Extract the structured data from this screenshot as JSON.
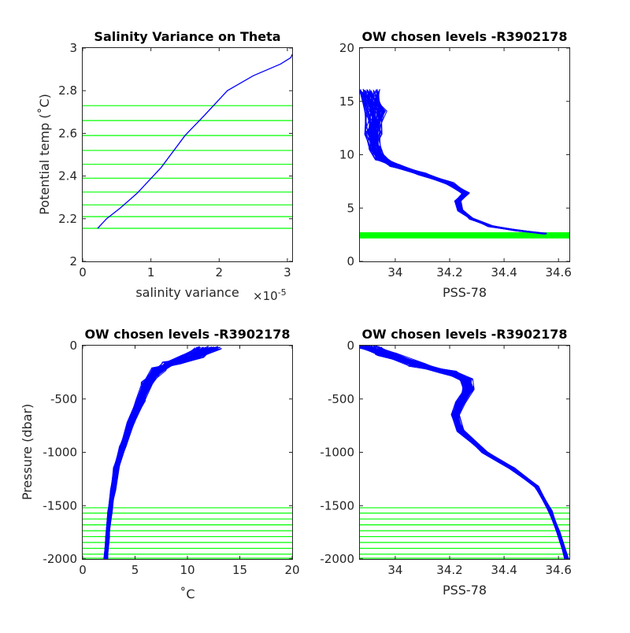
{
  "figure": {
    "panels": [
      "salinity-variance",
      "theta-salinity",
      "pressure-temperature",
      "pressure-salinity"
    ]
  },
  "chart_data": [
    {
      "id": "salinity-variance",
      "type": "line",
      "title": "Salinity Variance on Theta",
      "xlabel": "salinity variance",
      "xexponent_label": "×10",
      "xexponent_power": "-5",
      "ylabel": "Potential temp (˚C)",
      "xlim": [
        0,
        3.07
      ],
      "ylim": [
        2,
        3
      ],
      "xticks": [
        0,
        1,
        2,
        3
      ],
      "xticklabels": [
        "0",
        "1",
        "2",
        "3"
      ],
      "yticks": [
        2,
        2.2,
        2.4,
        2.6,
        2.8,
        3
      ],
      "yticklabels": [
        "2",
        "2.2",
        "2.4",
        "2.6",
        "2.8",
        "3"
      ],
      "series": [
        {
          "color": "#0000ff",
          "x": [
            0.22,
            0.35,
            0.55,
            0.8,
            1.15,
            1.5,
            1.8,
            2.12,
            2.5,
            2.9,
            3.05,
            3.07
          ],
          "y": [
            2.155,
            2.2,
            2.25,
            2.32,
            2.44,
            2.59,
            2.69,
            2.8,
            2.87,
            2.925,
            2.955,
            2.97
          ]
        }
      ],
      "hlines": {
        "color": "#00ff00",
        "values": [
          2.155,
          2.21,
          2.265,
          2.325,
          2.39,
          2.455,
          2.52,
          2.59,
          2.66,
          2.73
        ]
      }
    },
    {
      "id": "theta-salinity",
      "type": "line",
      "title": "OW chosen levels -R3902178",
      "xlabel": "PSS-78",
      "ylabel": "",
      "xlim": [
        33.87,
        34.64
      ],
      "ylim": [
        0,
        20
      ],
      "xticks": [
        34,
        34.2,
        34.4,
        34.6
      ],
      "xticklabels": [
        "34",
        "34.2",
        "34.4",
        "34.6"
      ],
      "yticks": [
        0,
        5,
        10,
        15,
        20
      ],
      "yticklabels": [
        "0",
        "5",
        "10",
        "15",
        "20"
      ],
      "profile": {
        "color": "#0000ff",
        "x": [
          34.55,
          34.45,
          34.35,
          34.28,
          34.24,
          34.23,
          34.26,
          34.2,
          34.1,
          34.0,
          33.95,
          33.93,
          33.92,
          33.93,
          33.9
        ],
        "y": [
          2.6,
          2.9,
          3.3,
          4.0,
          4.8,
          5.6,
          6.4,
          7.3,
          8.2,
          9.0,
          9.6,
          10.5,
          12.0,
          14.0,
          16.0
        ]
      },
      "green_band": {
        "color": "#00ff00",
        "from": 2.15,
        "to": 2.73
      }
    },
    {
      "id": "pressure-temperature",
      "type": "line",
      "title": "OW chosen levels -R3902178",
      "xlabel": "˚C",
      "ylabel": "Pressure (dbar)",
      "xlim": [
        0,
        20
      ],
      "ylim": [
        -2000,
        0
      ],
      "xticks": [
        0,
        5,
        10,
        15,
        20
      ],
      "xticklabels": [
        "0",
        "5",
        "10",
        "15",
        "20"
      ],
      "yticks": [
        -2000,
        -1500,
        -1000,
        -500,
        0
      ],
      "yticklabels": [
        "-2000",
        "-1500",
        "-1000",
        "-500",
        "0"
      ],
      "profile": {
        "color": "#0000ff",
        "x": [
          12,
          10.5,
          8.5,
          7.2,
          6.2,
          5.5,
          4.6,
          3.8,
          3.2,
          2.9,
          2.6,
          2.35,
          2.2
        ],
        "y": [
          -20,
          -100,
          -160,
          -220,
          -350,
          -520,
          -720,
          -950,
          -1150,
          -1350,
          -1550,
          -1800,
          -2000
        ]
      },
      "hlines": {
        "color": "#00ff00",
        "values": [
          -1520,
          -1570,
          -1625,
          -1680,
          -1735,
          -1790,
          -1845,
          -1900,
          -1955,
          -2000
        ]
      }
    },
    {
      "id": "pressure-salinity",
      "type": "line",
      "title": "OW chosen levels -R3902178",
      "xlabel": "PSS-78",
      "ylabel": "",
      "xlim": [
        33.87,
        34.64
      ],
      "ylim": [
        -2000,
        0
      ],
      "xticks": [
        34,
        34.2,
        34.4,
        34.6
      ],
      "xticklabels": [
        "34",
        "34.2",
        "34.4",
        "34.6"
      ],
      "yticks": [
        -2000,
        -1500,
        -1000,
        -500,
        0
      ],
      "yticklabels": [
        "-2000",
        "-1500",
        "-1000",
        "-500",
        "0"
      ],
      "profile": {
        "color": "#0000ff",
        "x": [
          33.9,
          33.97,
          34.08,
          34.2,
          34.26,
          34.27,
          34.24,
          34.22,
          34.24,
          34.33,
          34.43,
          34.52,
          34.57,
          34.6,
          34.63
        ],
        "y": [
          -10,
          -80,
          -180,
          -250,
          -320,
          -400,
          -530,
          -650,
          -800,
          -1000,
          -1150,
          -1320,
          -1550,
          -1750,
          -2000
        ]
      },
      "hlines": {
        "color": "#00ff00",
        "values": [
          -1520,
          -1570,
          -1625,
          -1680,
          -1735,
          -1790,
          -1845,
          -1900,
          -1955,
          -2000
        ]
      }
    }
  ]
}
